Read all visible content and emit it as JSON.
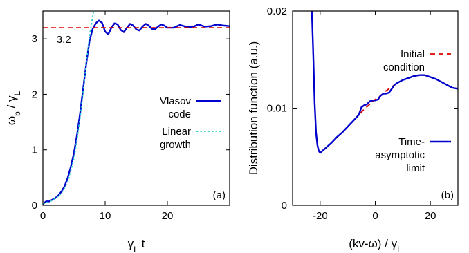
{
  "chart_data": [
    {
      "type": "line",
      "panel_label": "(a)",
      "xlabel": "γ",
      "xlabel_sub": "L",
      "xlabel_suffix": " t",
      "ylabel": "ω",
      "ylabel_sub": "b",
      "ylabel_mid": " / γ",
      "ylabel_sub2": "L",
      "xlim": [
        0,
        30
      ],
      "ylim": [
        0,
        3.5
      ],
      "xticks": [
        0,
        10,
        20
      ],
      "yticks": [
        0,
        1,
        2,
        3
      ],
      "grid": false,
      "legend_position": "right",
      "annotation": "3.2",
      "series": [
        {
          "name_lines": [
            "Vlasov",
            "code"
          ],
          "style": "solid",
          "color": "#0000cc",
          "x": [
            0,
            0.5,
            1,
            1.5,
            2,
            2.5,
            3,
            3.5,
            4,
            4.5,
            5,
            5.5,
            6,
            6.5,
            7,
            7.5,
            8,
            8.5,
            9,
            9.5,
            10,
            10.5,
            11,
            11.5,
            12,
            12.5,
            13,
            13.5,
            14,
            14.5,
            15,
            15.5,
            16,
            16.5,
            17,
            17.5,
            18,
            18.5,
            19,
            19.5,
            20,
            21,
            22,
            23,
            24,
            25,
            26,
            27,
            28,
            29,
            30
          ],
          "y": [
            0.02,
            0.07,
            0.07,
            0.1,
            0.13,
            0.18,
            0.25,
            0.35,
            0.5,
            0.7,
            0.95,
            1.28,
            1.68,
            2.13,
            2.58,
            2.97,
            3.18,
            3.28,
            3.33,
            3.29,
            3.13,
            3.08,
            3.2,
            3.28,
            3.26,
            3.16,
            3.12,
            3.2,
            3.27,
            3.24,
            3.17,
            3.15,
            3.22,
            3.27,
            3.24,
            3.18,
            3.17,
            3.22,
            3.26,
            3.24,
            3.2,
            3.2,
            3.25,
            3.22,
            3.21,
            3.26,
            3.22,
            3.23,
            3.26,
            3.24,
            3.23
          ]
        },
        {
          "name_lines": [
            "Linear",
            "growth"
          ],
          "style": "dotted",
          "color": "#22cccc",
          "x": [
            0,
            1,
            2,
            3,
            4,
            5,
            5.5,
            6,
            6.5,
            7,
            7.5,
            8,
            8.3,
            8.6
          ],
          "y": [
            0.03,
            0.06,
            0.12,
            0.22,
            0.42,
            0.85,
            1.2,
            1.6,
            2.08,
            2.6,
            3.05,
            3.4,
            3.58,
            3.75
          ]
        },
        {
          "name_lines": [],
          "style": "dashed",
          "color": "#dd0000",
          "x": [
            0,
            30
          ],
          "y": [
            3.2,
            3.2
          ]
        }
      ]
    },
    {
      "type": "line",
      "panel_label": "(b)",
      "xlabel": "(kv-ω) / γ",
      "xlabel_sub": "L",
      "ylabel": "Distribution function (a.u.)",
      "xlim": [
        -30,
        30
      ],
      "ylim": [
        0,
        0.02
      ],
      "xticks": [
        -20,
        0,
        20
      ],
      "xtick_labels": [
        "-20",
        "0",
        "20"
      ],
      "yticks": [
        0,
        0.01,
        0.02
      ],
      "ytick_labels": [
        "0",
        "0.01",
        "0.02"
      ],
      "grid": false,
      "legend_position": "right",
      "series": [
        {
          "name_lines": [
            "Initial",
            "condition"
          ],
          "style": "dashed",
          "color": "#dd0000",
          "x": [
            -23,
            -22.5,
            -22,
            -21.5,
            -21,
            -20.5,
            -20,
            -18,
            -16,
            -14,
            -12,
            -10,
            -8,
            -6,
            -4,
            -2,
            0,
            2,
            4,
            6,
            8,
            10,
            12,
            14,
            16,
            17,
            18,
            20,
            22,
            24,
            26,
            28,
            30
          ],
          "y": [
            0.02,
            0.0155,
            0.0105,
            0.0075,
            0.0062,
            0.0056,
            0.0054,
            0.0059,
            0.0064,
            0.007,
            0.0075,
            0.0081,
            0.0087,
            0.0093,
            0.0099,
            0.0104,
            0.0109,
            0.0113,
            0.0118,
            0.0122,
            0.0126,
            0.0129,
            0.0131,
            0.0133,
            0.0134,
            0.0134,
            0.0134,
            0.0132,
            0.013,
            0.0127,
            0.0124,
            0.0121,
            0.012
          ]
        },
        {
          "name_lines": [
            "Time-",
            "asymptotic",
            "limit"
          ],
          "style": "solid",
          "color": "#0000cc",
          "x": [
            -23,
            -22.5,
            -22,
            -21.5,
            -21,
            -20.5,
            -20,
            -18,
            -16,
            -14,
            -12,
            -10,
            -8,
            -7,
            -6,
            -5.5,
            -5,
            -4,
            -3,
            -2,
            -1,
            0,
            1,
            2,
            3,
            4,
            5,
            6,
            7,
            8,
            10,
            12,
            14,
            16,
            17,
            18,
            20,
            22,
            24,
            26,
            28,
            30
          ],
          "y": [
            0.02,
            0.0155,
            0.0105,
            0.0075,
            0.0062,
            0.0056,
            0.0054,
            0.0059,
            0.0064,
            0.007,
            0.0075,
            0.0081,
            0.0087,
            0.009,
            0.0093,
            0.0097,
            0.0101,
            0.0103,
            0.0104,
            0.0107,
            0.0108,
            0.0108,
            0.0109,
            0.0113,
            0.0115,
            0.0115,
            0.0116,
            0.012,
            0.0124,
            0.0126,
            0.0129,
            0.0131,
            0.0133,
            0.0134,
            0.0134,
            0.0134,
            0.0132,
            0.013,
            0.0127,
            0.0124,
            0.0121,
            0.012
          ]
        }
      ]
    }
  ]
}
